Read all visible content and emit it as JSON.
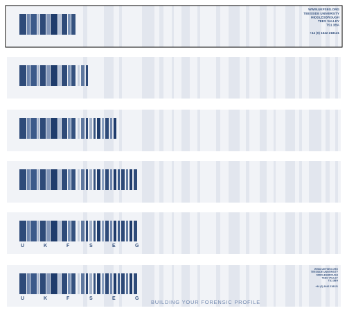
{
  "contact": [
    "WWW.UKFSEG.ORG",
    "TEESSIDE UNIVERSITY",
    "MIDDLESBROUGH",
    "TEES VALLEY",
    "TS1 3BA",
    "+44 (0) 1642 218121"
  ],
  "logo_letters": [
    "U",
    "K",
    "F",
    "S",
    "E",
    "G"
  ],
  "tagline": "BUILDING YOUR FORENSIC PROFILE"
}
